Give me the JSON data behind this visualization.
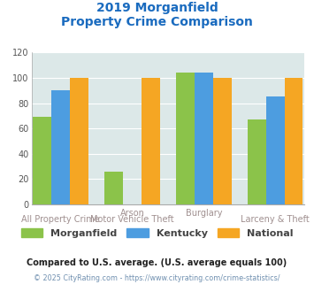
{
  "title_line1": "2019 Morganfield",
  "title_line2": "Property Crime Comparison",
  "cat_labels_top": [
    "",
    "Arson",
    "Burglary",
    ""
  ],
  "cat_labels_bottom": [
    "All Property Crime",
    "Motor Vehicle Theft",
    "",
    "Larceny & Theft"
  ],
  "morganfield": [
    69,
    26,
    104,
    67
  ],
  "kentucky": [
    90,
    0,
    104,
    85
  ],
  "national": [
    100,
    100,
    100,
    100
  ],
  "color_morganfield": "#8bc34a",
  "color_kentucky": "#4d9de0",
  "color_national": "#f5a623",
  "ylim": [
    0,
    120
  ],
  "yticks": [
    0,
    20,
    40,
    60,
    80,
    100,
    120
  ],
  "title_color": "#1a6bbf",
  "label_color": "#a09090",
  "legend_text_color": "#444444",
  "footnote1": "Compared to U.S. average. (U.S. average equals 100)",
  "footnote2": "© 2025 CityRating.com - https://www.cityrating.com/crime-statistics/",
  "footnote1_color": "#222222",
  "footnote2_color": "#7090b0",
  "bg_color": "#dce8e8",
  "bar_width": 0.22,
  "group_positions": [
    0.35,
    1.2,
    2.05,
    2.9
  ]
}
